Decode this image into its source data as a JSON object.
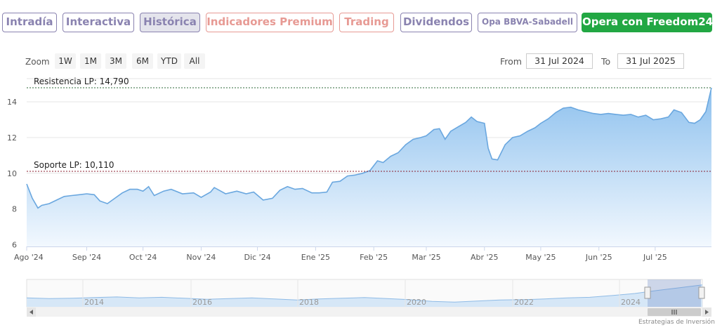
{
  "tabs": [
    {
      "label": "Intradía",
      "style": "purple"
    },
    {
      "label": "Interactiva",
      "style": "purple"
    },
    {
      "label": "Histórica",
      "style": "purple active"
    },
    {
      "label": "Indicadores Premium",
      "style": "salmon"
    },
    {
      "label": "Trading",
      "style": "salmon"
    },
    {
      "label": "Dividendos",
      "style": "purple"
    },
    {
      "label": "Opa BBVA-Sabadell",
      "style": "purple small"
    },
    {
      "label": "Opera con Freedom24",
      "style": "green"
    }
  ],
  "zoom": {
    "label": "Zoom",
    "buttons": [
      "1W",
      "1M",
      "3M",
      "6M",
      "YTD",
      "All"
    ]
  },
  "range": {
    "from_label": "From",
    "from_value": "31 Jul 2024",
    "to_label": "To",
    "to_value": "31 Jul 2025"
  },
  "credit": "Estrategias de Inversión",
  "colors": {
    "line": "#6aa7df",
    "area_top": "#8ec1ee",
    "area_bottom": "#f2f8fe",
    "tab_purple": "#8a83b0",
    "tab_salmon": "#e79a94",
    "cta_green": "#22a743",
    "resistance": "#2d6a3a",
    "support": "#8b1f2d"
  },
  "chart_data": {
    "type": "area",
    "title": "",
    "xlabel": "",
    "ylabel": "",
    "ylim": [
      5.9,
      15.3
    ],
    "yticks": [
      6,
      8,
      10,
      12,
      14
    ],
    "xlim": [
      "2024-07-31",
      "2025-07-31"
    ],
    "xticks": [
      {
        "label": "Ago '24",
        "date": "2024-07-31"
      },
      {
        "label": "Sep '24",
        "date": "2024-09-01"
      },
      {
        "label": "Oct '24",
        "date": "2024-10-01"
      },
      {
        "label": "Nov '24",
        "date": "2024-11-01"
      },
      {
        "label": "Dic '24",
        "date": "2024-12-01"
      },
      {
        "label": "Ene '25",
        "date": "2025-01-01"
      },
      {
        "label": "Feb '25",
        "date": "2025-02-01"
      },
      {
        "label": "Mar '25",
        "date": "2025-03-01"
      },
      {
        "label": "Abr '25",
        "date": "2025-04-01"
      },
      {
        "label": "May '25",
        "date": "2025-05-01"
      },
      {
        "label": "Jun '25",
        "date": "2025-06-01"
      },
      {
        "label": "Jul '25",
        "date": "2025-07-01"
      }
    ],
    "grid": true,
    "legend": "none",
    "lines": [
      {
        "label": "Resistencia LP: 14,790",
        "value": 14.79,
        "style": "resistance"
      },
      {
        "label": "Soporte LP: 10,110",
        "value": 10.11,
        "style": "support"
      }
    ],
    "series": [
      {
        "points": [
          [
            "2024-07-31",
            9.4
          ],
          [
            "2024-08-03",
            8.6
          ],
          [
            "2024-08-06",
            8.05
          ],
          [
            "2024-08-08",
            8.2
          ],
          [
            "2024-08-12",
            8.3
          ],
          [
            "2024-08-16",
            8.5
          ],
          [
            "2024-08-20",
            8.7
          ],
          [
            "2024-08-24",
            8.75
          ],
          [
            "2024-08-28",
            8.8
          ],
          [
            "2024-09-01",
            8.85
          ],
          [
            "2024-09-05",
            8.8
          ],
          [
            "2024-09-08",
            8.45
          ],
          [
            "2024-09-12",
            8.3
          ],
          [
            "2024-09-16",
            8.6
          ],
          [
            "2024-09-20",
            8.9
          ],
          [
            "2024-09-24",
            9.1
          ],
          [
            "2024-09-28",
            9.1
          ],
          [
            "2024-10-01",
            9.0
          ],
          [
            "2024-10-04",
            9.25
          ],
          [
            "2024-10-07",
            8.75
          ],
          [
            "2024-10-12",
            9.0
          ],
          [
            "2024-10-16",
            9.1
          ],
          [
            "2024-10-22",
            8.85
          ],
          [
            "2024-10-28",
            8.9
          ],
          [
            "2024-11-01",
            8.65
          ],
          [
            "2024-11-06",
            8.95
          ],
          [
            "2024-11-08",
            9.2
          ],
          [
            "2024-11-14",
            8.85
          ],
          [
            "2024-11-20",
            9.0
          ],
          [
            "2024-11-25",
            8.85
          ],
          [
            "2024-11-29",
            8.95
          ],
          [
            "2024-12-04",
            8.5
          ],
          [
            "2024-12-09",
            8.6
          ],
          [
            "2024-12-13",
            9.05
          ],
          [
            "2024-12-17",
            9.25
          ],
          [
            "2024-12-21",
            9.1
          ],
          [
            "2024-12-25",
            9.15
          ],
          [
            "2024-12-30",
            8.9
          ],
          [
            "2025-01-03",
            8.9
          ],
          [
            "2025-01-07",
            8.95
          ],
          [
            "2025-01-10",
            9.5
          ],
          [
            "2025-01-14",
            9.55
          ],
          [
            "2025-01-18",
            9.85
          ],
          [
            "2025-01-22",
            9.9
          ],
          [
            "2025-01-26",
            10.0
          ],
          [
            "2025-01-30",
            10.15
          ],
          [
            "2025-02-03",
            10.7
          ],
          [
            "2025-02-06",
            10.6
          ],
          [
            "2025-02-10",
            10.95
          ],
          [
            "2025-02-14",
            11.15
          ],
          [
            "2025-02-18",
            11.6
          ],
          [
            "2025-02-22",
            11.9
          ],
          [
            "2025-02-26",
            12.0
          ],
          [
            "2025-03-01",
            12.1
          ],
          [
            "2025-03-05",
            12.45
          ],
          [
            "2025-03-08",
            12.5
          ],
          [
            "2025-03-11",
            11.9
          ],
          [
            "2025-03-14",
            12.35
          ],
          [
            "2025-03-18",
            12.6
          ],
          [
            "2025-03-22",
            12.85
          ],
          [
            "2025-03-25",
            13.15
          ],
          [
            "2025-03-28",
            12.9
          ],
          [
            "2025-04-01",
            12.8
          ],
          [
            "2025-04-03",
            11.4
          ],
          [
            "2025-04-05",
            10.8
          ],
          [
            "2025-04-08",
            10.75
          ],
          [
            "2025-04-12",
            11.6
          ],
          [
            "2025-04-16",
            12.0
          ],
          [
            "2025-04-20",
            12.1
          ],
          [
            "2025-04-24",
            12.35
          ],
          [
            "2025-04-28",
            12.55
          ],
          [
            "2025-05-01",
            12.8
          ],
          [
            "2025-05-05",
            13.05
          ],
          [
            "2025-05-09",
            13.4
          ],
          [
            "2025-05-13",
            13.65
          ],
          [
            "2025-05-17",
            13.7
          ],
          [
            "2025-05-21",
            13.55
          ],
          [
            "2025-05-25",
            13.45
          ],
          [
            "2025-05-29",
            13.35
          ],
          [
            "2025-06-02",
            13.3
          ],
          [
            "2025-06-06",
            13.35
          ],
          [
            "2025-06-10",
            13.3
          ],
          [
            "2025-06-14",
            13.25
          ],
          [
            "2025-06-18",
            13.3
          ],
          [
            "2025-06-22",
            13.15
          ],
          [
            "2025-06-26",
            13.25
          ],
          [
            "2025-06-30",
            13.0
          ],
          [
            "2025-07-04",
            13.05
          ],
          [
            "2025-07-08",
            13.15
          ],
          [
            "2025-07-11",
            13.55
          ],
          [
            "2025-07-15",
            13.4
          ],
          [
            "2025-07-19",
            12.85
          ],
          [
            "2025-07-22",
            12.8
          ],
          [
            "2025-07-25",
            13.0
          ],
          [
            "2025-07-28",
            13.45
          ],
          [
            "2025-07-31",
            14.79
          ]
        ]
      }
    ],
    "navigator": {
      "type": "area",
      "ticks": [
        "2014",
        "2016",
        "2018",
        "2020",
        "2022",
        "2024"
      ],
      "values": [
        2.6,
        2.4,
        2.5,
        2.7,
        2.9,
        2.6,
        2.8,
        2.5,
        2.2,
        2.4,
        2.6,
        2.3,
        2.0,
        2.3,
        2.5,
        2.7,
        2.4,
        2.1,
        1.6,
        1.4,
        1.7,
        2.0,
        2.1,
        2.3,
        2.6,
        2.8,
        3.3,
        3.9,
        4.8,
        5.6,
        6.4
      ]
    }
  }
}
